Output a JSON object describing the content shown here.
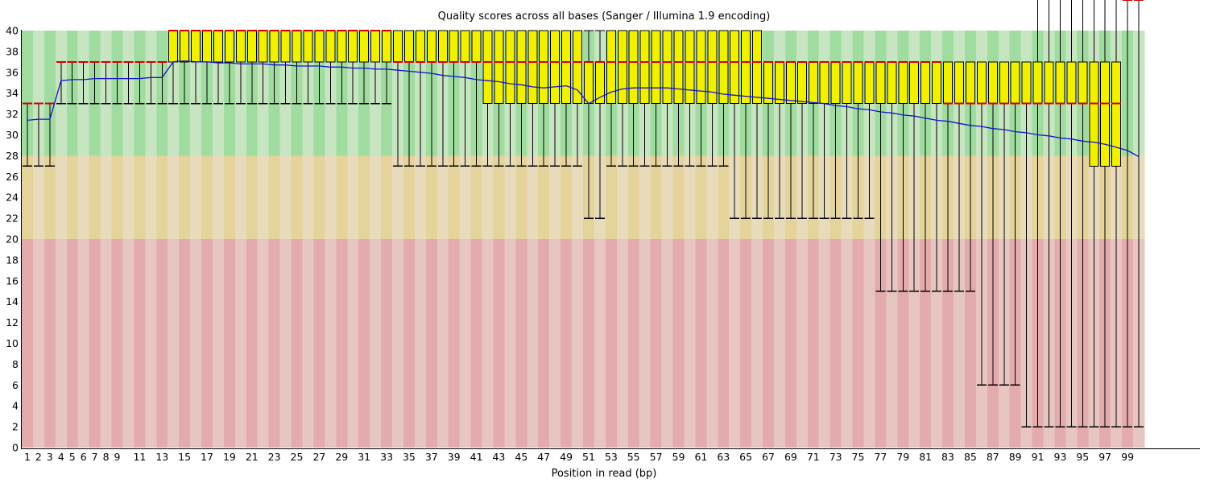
{
  "title": "Quality scores across all bases (Sanger / Illumina 1.9 encoding)",
  "chart_data": {
    "type": "boxplot",
    "title": "Quality scores across all bases (Sanger / Illumina 1.9 encoding)",
    "xlabel": "Position in read (bp)",
    "ylabel": "",
    "ylim": [
      0,
      40
    ],
    "ytick_step": 2,
    "n_positions": 100,
    "xticks": [
      1,
      2,
      3,
      4,
      5,
      6,
      7,
      8,
      9,
      11,
      13,
      15,
      17,
      19,
      21,
      23,
      25,
      27,
      29,
      31,
      33,
      35,
      37,
      39,
      41,
      43,
      45,
      47,
      49,
      51,
      53,
      55,
      57,
      59,
      61,
      63,
      65,
      67,
      69,
      71,
      73,
      75,
      77,
      79,
      81,
      83,
      85,
      87,
      89,
      91,
      93,
      95,
      97,
      99
    ],
    "bands": [
      {
        "name": "good-quality",
        "min": 28,
        "max": 40,
        "stripe_dark": "#a0dca0",
        "stripe_light": "#c6e5c0"
      },
      {
        "name": "medium-quality",
        "min": 20,
        "max": 28,
        "stripe_dark": "#e4d39b",
        "stripe_light": "#e8dbbc"
      },
      {
        "name": "poor-quality",
        "min": 0,
        "max": 20,
        "stripe_dark": "#e3abab",
        "stripe_light": "#e7c6c2"
      }
    ],
    "colors": {
      "box_fill": "#f0f000",
      "box_border": "#000000",
      "median": "#d40000",
      "mean": "#1414cc",
      "whisker": "#000000",
      "axis": "#000000"
    },
    "series": {
      "p10": [
        27,
        27,
        27,
        33,
        33,
        33,
        33,
        33,
        33,
        33,
        33,
        33,
        33,
        33,
        33,
        33,
        33,
        33,
        33,
        33,
        33,
        33,
        33,
        33,
        33,
        33,
        33,
        33,
        33,
        33,
        33,
        33,
        33,
        27,
        27,
        27,
        27,
        27,
        27,
        27,
        27,
        27,
        27,
        27,
        27,
        27,
        27,
        27,
        27,
        27,
        22,
        22,
        27,
        27,
        27,
        27,
        27,
        27,
        27,
        27,
        27,
        27,
        27,
        22,
        22,
        22,
        22,
        22,
        22,
        22,
        22,
        22,
        22,
        22,
        22,
        22,
        15,
        15,
        15,
        15,
        15,
        15,
        15,
        15,
        15,
        6,
        6,
        6,
        6,
        2,
        2,
        2,
        2,
        2,
        2,
        2,
        2,
        2,
        2,
        2
      ],
      "p25": [
        33,
        33,
        33,
        37,
        37,
        37,
        37,
        37,
        37,
        37,
        37,
        37,
        37,
        37,
        37,
        37,
        37,
        37,
        37,
        37,
        37,
        37,
        37,
        37,
        37,
        37,
        37,
        37,
        37,
        37,
        37,
        37,
        37,
        37,
        37,
        37,
        37,
        37,
        37,
        37,
        37,
        33,
        33,
        33,
        33,
        33,
        33,
        33,
        33,
        33,
        33,
        33,
        33,
        33,
        33,
        33,
        33,
        33,
        33,
        33,
        33,
        33,
        33,
        33,
        33,
        33,
        33,
        33,
        33,
        33,
        33,
        33,
        33,
        33,
        33,
        33,
        33,
        33,
        33,
        33,
        33,
        33,
        33,
        33,
        33,
        33,
        33,
        33,
        33,
        33,
        33,
        33,
        33,
        33,
        33,
        27,
        27,
        27
      ],
      "median": [
        33,
        33,
        33,
        37,
        37,
        37,
        37,
        37,
        37,
        37,
        37,
        37,
        37,
        40,
        40,
        40,
        40,
        40,
        40,
        40,
        40,
        40,
        40,
        40,
        40,
        40,
        40,
        40,
        40,
        40,
        40,
        40,
        40,
        37,
        37,
        37,
        37,
        37,
        37,
        37,
        37,
        37,
        37,
        37,
        37,
        37,
        37,
        37,
        37,
        37,
        37,
        37,
        37,
        37,
        37,
        37,
        37,
        37,
        37,
        37,
        37,
        37,
        37,
        37,
        37,
        37,
        37,
        37,
        37,
        37,
        37,
        37,
        37,
        37,
        37,
        37,
        37,
        37,
        37,
        37,
        37,
        37,
        33,
        33,
        33,
        33,
        33,
        33,
        33,
        33,
        33,
        33,
        33,
        33,
        33,
        33,
        33,
        33
      ],
      "p75": [
        33,
        33,
        33,
        37,
        37,
        37,
        37,
        37,
        37,
        37,
        37,
        37,
        37,
        40,
        40,
        40,
        40,
        40,
        40,
        40,
        40,
        40,
        40,
        40,
        40,
        40,
        40,
        40,
        40,
        40,
        40,
        40,
        40,
        40,
        40,
        40,
        40,
        40,
        40,
        40,
        40,
        40,
        40,
        40,
        40,
        40,
        40,
        40,
        40,
        40,
        37,
        37,
        40,
        40,
        40,
        40,
        40,
        40,
        40,
        40,
        40,
        40,
        40,
        40,
        40,
        40,
        37,
        37,
        37,
        37,
        37,
        37,
        37,
        37,
        37,
        37,
        37,
        37,
        37,
        37,
        37,
        37,
        37,
        37,
        37,
        37,
        37,
        37,
        37,
        37,
        37,
        37,
        37,
        37,
        37,
        37,
        37,
        37,
        37,
        37
      ],
      "p90": [
        33,
        33,
        33,
        37,
        37,
        37,
        37,
        37,
        37,
        37,
        37,
        37,
        37,
        40,
        40,
        40,
        40,
        40,
        40,
        40,
        40,
        40,
        40,
        40,
        40,
        40,
        40,
        40,
        40,
        40,
        40,
        40,
        40,
        40,
        40,
        40,
        40,
        40,
        40,
        40,
        40,
        40,
        40,
        40,
        40,
        40,
        40,
        40,
        40,
        40,
        40,
        40,
        40,
        40,
        40,
        40,
        40,
        40,
        40,
        40,
        40,
        40,
        40,
        40,
        40,
        37,
        37,
        37,
        37,
        37,
        37,
        37,
        37,
        37,
        37,
        37,
        37,
        37,
        37,
        37,
        37,
        37,
        37,
        37,
        37,
        37,
        37,
        37,
        37,
        37
      ],
      "mean": [
        31.4,
        31.5,
        31.5,
        35.2,
        35.3,
        35.3,
        35.4,
        35.4,
        35.4,
        35.4,
        35.4,
        35.5,
        35.5,
        37.0,
        37.1,
        37.0,
        37.0,
        36.9,
        36.9,
        36.8,
        36.8,
        36.8,
        36.7,
        36.7,
        36.6,
        36.6,
        36.6,
        36.5,
        36.5,
        36.4,
        36.4,
        36.3,
        36.3,
        36.2,
        36.1,
        36.0,
        35.9,
        35.7,
        35.6,
        35.5,
        35.3,
        35.2,
        35.1,
        34.9,
        34.8,
        34.6,
        34.5,
        34.6,
        34.7,
        34.3,
        33.0,
        33.6,
        34.1,
        34.4,
        34.5,
        34.5,
        34.5,
        34.5,
        34.4,
        34.3,
        34.2,
        34.1,
        33.9,
        33.8,
        33.7,
        33.6,
        33.5,
        33.4,
        33.3,
        33.2,
        33.1,
        33.0,
        32.8,
        32.7,
        32.5,
        32.4,
        32.2,
        32.1,
        31.9,
        31.8,
        31.6,
        31.4,
        31.3,
        31.1,
        30.9,
        30.8,
        30.6,
        30.5,
        30.3,
        30.2,
        30.0,
        29.9,
        29.7,
        29.6,
        29.4,
        29.3,
        29.1,
        28.8,
        28.5,
        27.9
      ]
    },
    "legend_position": "none",
    "grid": false
  }
}
